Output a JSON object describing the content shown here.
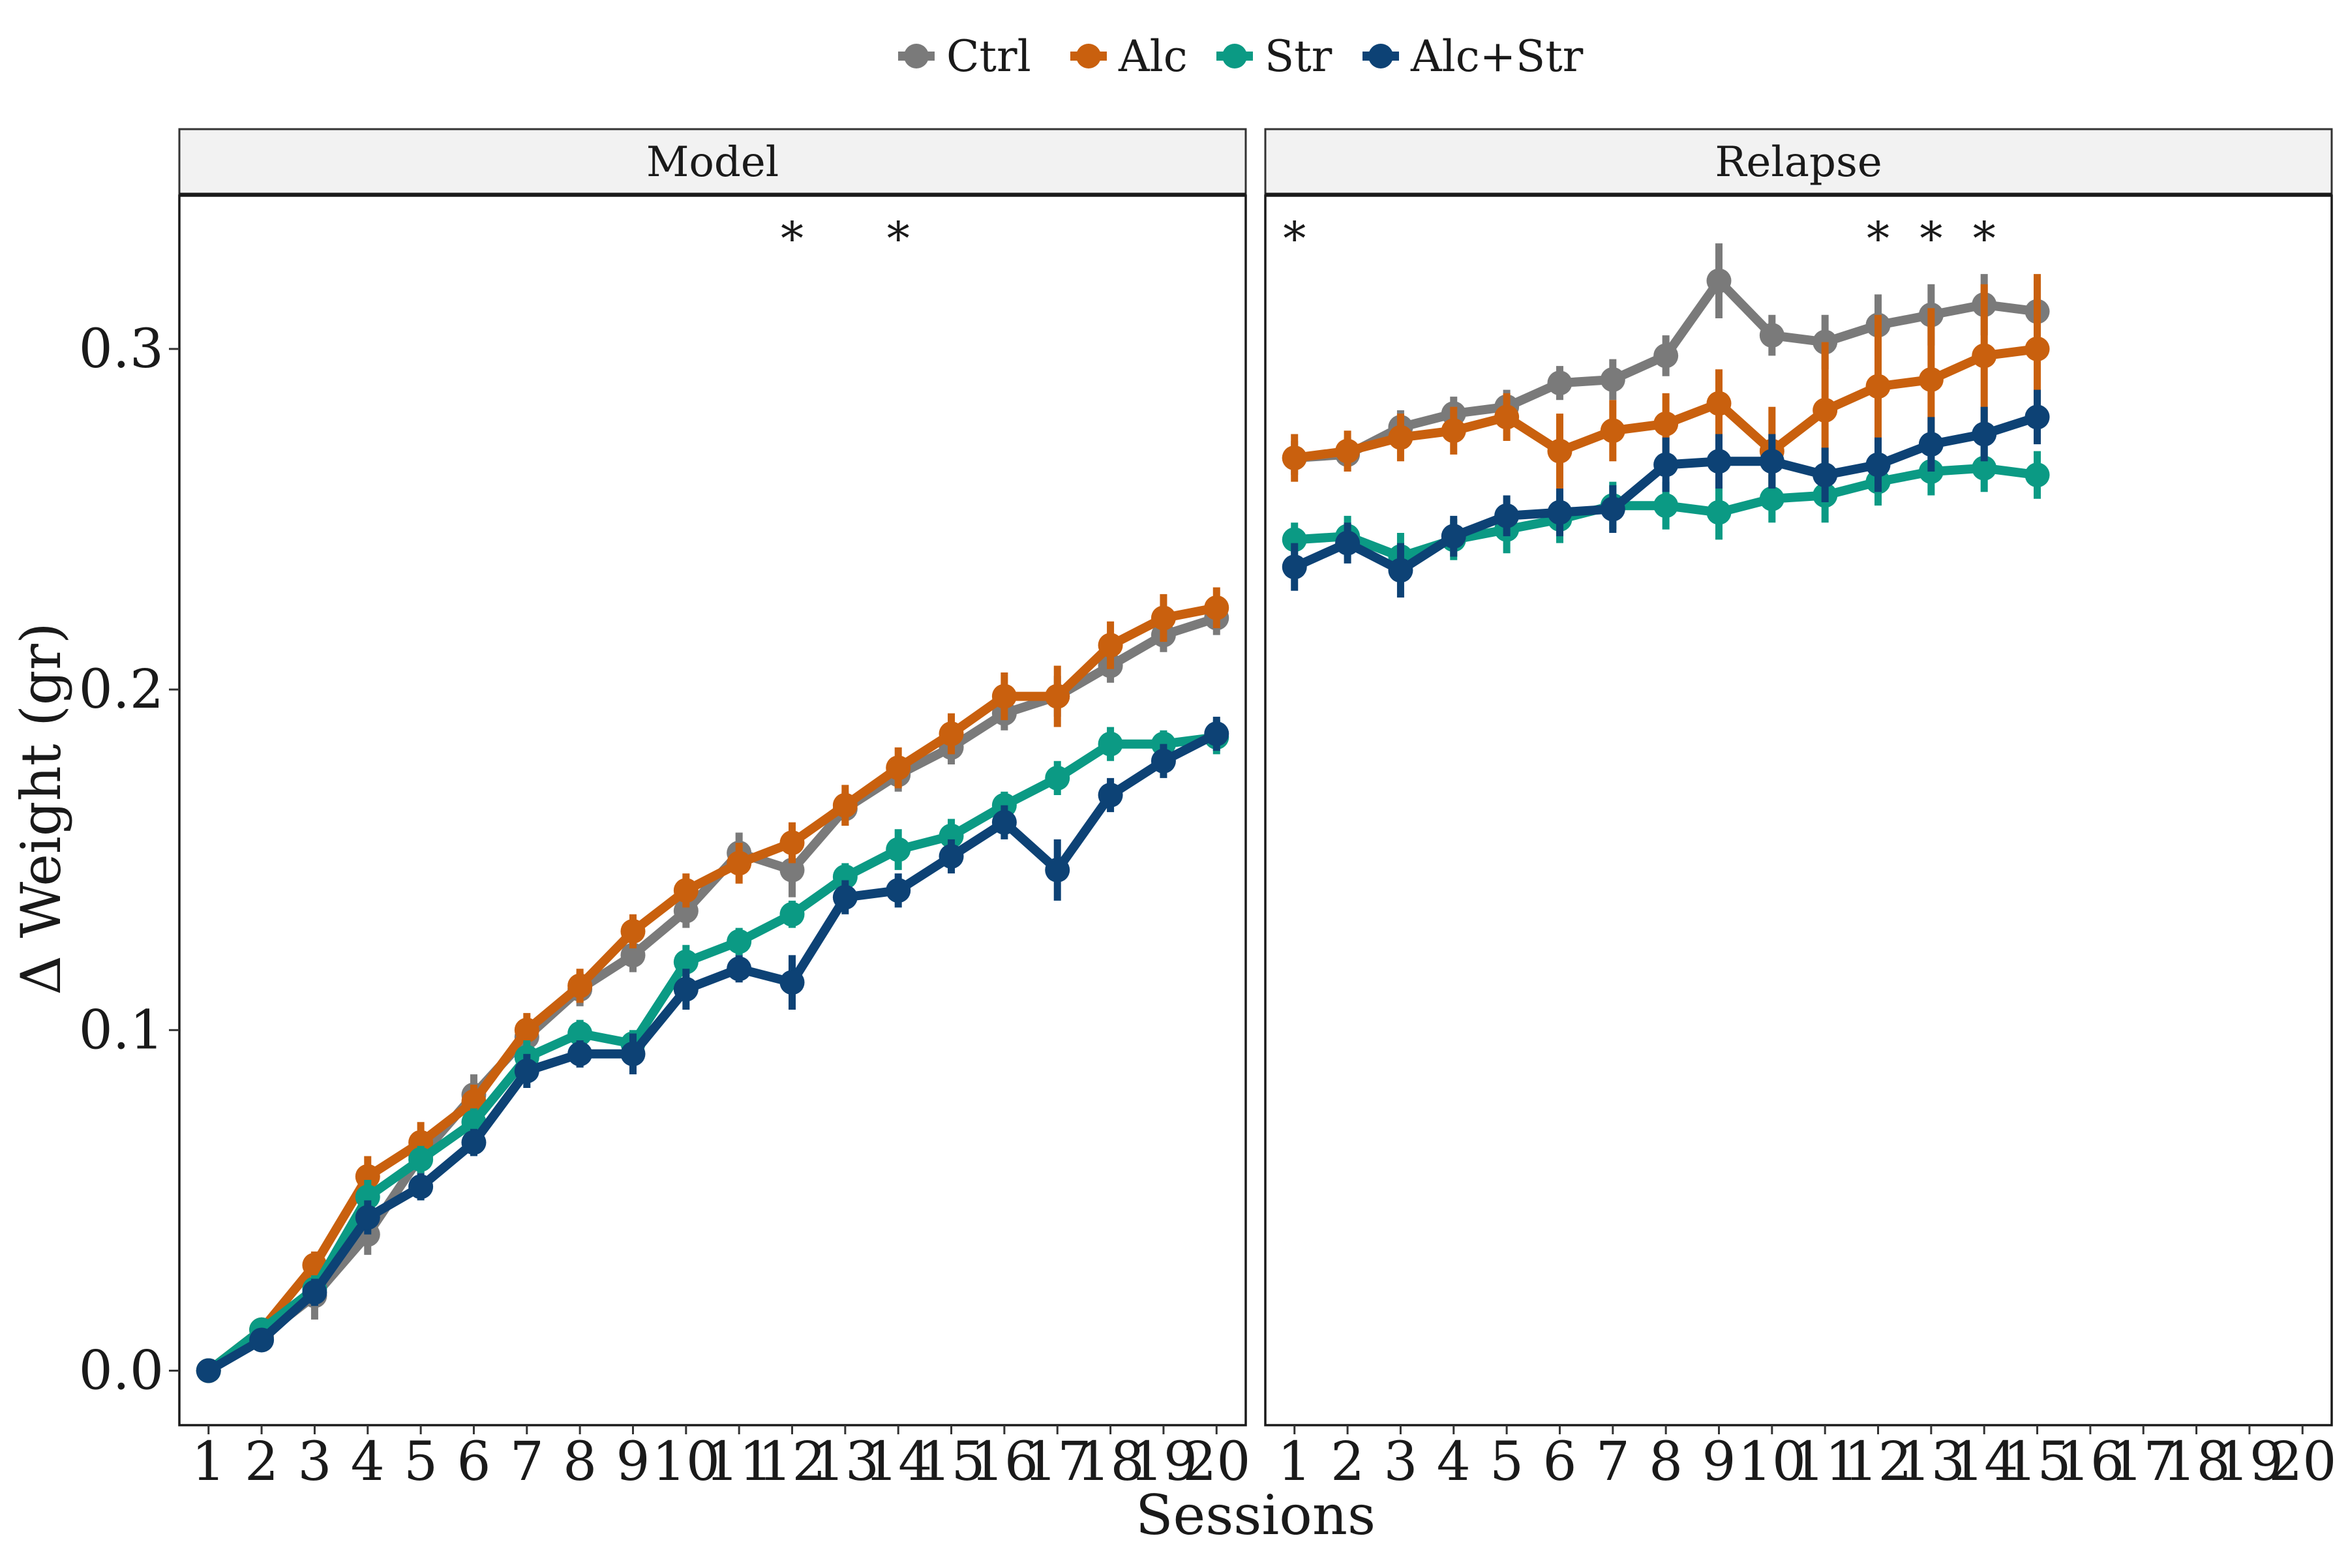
{
  "chart_data": {
    "type": "line",
    "legend": {
      "placement": "top",
      "entries": [
        "Ctrl",
        "Alc",
        "Str",
        "Alc+Str"
      ]
    },
    "xlabel": "Sessions",
    "ylabel": "Δ Weight (gr)",
    "ylim": [
      -0.016,
      0.345
    ],
    "yticks": [
      "0.0",
      "0.1",
      "0.2",
      "0.3"
    ],
    "ytick_values": [
      0.0,
      0.1,
      0.2,
      0.3
    ],
    "x_ticks": [
      "1",
      "2",
      "3",
      "4",
      "5",
      "6",
      "7",
      "8",
      "9",
      "10",
      "11",
      "12",
      "13",
      "14",
      "15",
      "16",
      "17",
      "18",
      "19",
      "20"
    ],
    "xlim": [
      0.45,
      20.55
    ],
    "grid": false,
    "colors": {
      "Ctrl": "#7a7a7a",
      "Alc": "#c9600e",
      "Str": "#0b9a84",
      "Alc+Str": "#0d4275"
    },
    "panels": [
      {
        "title": "Model",
        "significance": [
          {
            "session": 12,
            "label": "*"
          },
          {
            "session": 14,
            "label": "*"
          }
        ],
        "series": [
          {
            "name": "Ctrl",
            "x": [
              1,
              2,
              3,
              4,
              5,
              6,
              7,
              8,
              9,
              10,
              11,
              12,
              13,
              14,
              15,
              16,
              17,
              18,
              19,
              20
            ],
            "values": [
              0.0,
              0.01,
              0.022,
              0.04,
              0.063,
              0.081,
              0.098,
              0.112,
              0.122,
              0.135,
              0.152,
              0.147,
              0.165,
              0.175,
              0.183,
              0.193,
              0.198,
              0.207,
              0.216,
              0.221
            ],
            "err": [
              0.002,
              0.003,
              0.007,
              0.006,
              0.005,
              0.006,
              0.005,
              0.005,
              0.005,
              0.005,
              0.006,
              0.008,
              0.005,
              0.005,
              0.005,
              0.005,
              0.006,
              0.005,
              0.005,
              0.005
            ]
          },
          {
            "name": "Alc",
            "x": [
              1,
              2,
              3,
              4,
              5,
              6,
              7,
              8,
              9,
              10,
              11,
              12,
              13,
              14,
              15,
              16,
              17,
              18,
              19,
              20
            ],
            "values": [
              0.0,
              0.012,
              0.031,
              0.057,
              0.067,
              0.079,
              0.1,
              0.113,
              0.129,
              0.141,
              0.149,
              0.155,
              0.166,
              0.177,
              0.187,
              0.198,
              0.198,
              0.213,
              0.221,
              0.224
            ],
            "err": [
              0.002,
              0.003,
              0.004,
              0.006,
              0.006,
              0.005,
              0.005,
              0.005,
              0.005,
              0.005,
              0.006,
              0.006,
              0.006,
              0.006,
              0.006,
              0.007,
              0.009,
              0.007,
              0.007,
              0.006
            ]
          },
          {
            "name": "Str",
            "x": [
              1,
              2,
              3,
              4,
              5,
              6,
              7,
              8,
              9,
              10,
              11,
              12,
              13,
              14,
              15,
              16,
              17,
              18,
              19,
              20
            ],
            "values": [
              0.0,
              0.012,
              0.024,
              0.051,
              0.062,
              0.073,
              0.092,
              0.099,
              0.096,
              0.12,
              0.126,
              0.134,
              0.145,
              0.153,
              0.157,
              0.166,
              0.174,
              0.184,
              0.184,
              0.186
            ],
            "err": [
              0.002,
              0.003,
              0.004,
              0.005,
              0.004,
              0.004,
              0.005,
              0.004,
              0.004,
              0.005,
              0.004,
              0.004,
              0.004,
              0.006,
              0.005,
              0.004,
              0.005,
              0.005,
              0.004,
              0.005
            ]
          },
          {
            "name": "Alc+Str",
            "x": [
              1,
              2,
              3,
              4,
              5,
              6,
              7,
              8,
              9,
              10,
              11,
              12,
              13,
              14,
              15,
              16,
              17,
              18,
              19,
              20
            ],
            "values": [
              0.0,
              0.009,
              0.023,
              0.045,
              0.054,
              0.067,
              0.088,
              0.093,
              0.093,
              0.112,
              0.118,
              0.114,
              0.139,
              0.141,
              0.151,
              0.161,
              0.147,
              0.169,
              0.179,
              0.187
            ],
            "err": [
              0.002,
              0.003,
              0.004,
              0.005,
              0.004,
              0.004,
              0.005,
              0.004,
              0.006,
              0.006,
              0.004,
              0.008,
              0.005,
              0.005,
              0.005,
              0.005,
              0.009,
              0.005,
              0.005,
              0.005
            ]
          }
        ]
      },
      {
        "title": "Relapse",
        "significance": [
          {
            "session": 1,
            "label": "*"
          },
          {
            "session": 12,
            "label": "*"
          },
          {
            "session": 13,
            "label": "*"
          },
          {
            "session": 14,
            "label": "*"
          }
        ],
        "series": [
          {
            "name": "Ctrl",
            "x": [
              1,
              2,
              3,
              4,
              5,
              6,
              7,
              8,
              9,
              10,
              11,
              12,
              13,
              14,
              15
            ],
            "values": [
              0.268,
              0.269,
              0.277,
              0.281,
              0.283,
              0.29,
              0.291,
              0.298,
              0.32,
              0.304,
              0.302,
              0.307,
              0.31,
              0.313,
              0.311
            ],
            "err": [
              0.005,
              0.005,
              0.005,
              0.005,
              0.005,
              0.005,
              0.006,
              0.006,
              0.011,
              0.006,
              0.008,
              0.009,
              0.009,
              0.009,
              0.009
            ]
          },
          {
            "name": "Alc",
            "x": [
              1,
              2,
              3,
              4,
              5,
              6,
              7,
              8,
              9,
              10,
              11,
              12,
              13,
              14,
              15
            ],
            "values": [
              0.268,
              0.27,
              0.274,
              0.276,
              0.28,
              0.27,
              0.276,
              0.278,
              0.284,
              0.27,
              0.282,
              0.289,
              0.291,
              0.298,
              0.3
            ],
            "err": [
              0.007,
              0.006,
              0.007,
              0.007,
              0.007,
              0.011,
              0.009,
              0.009,
              0.01,
              0.013,
              0.02,
              0.021,
              0.021,
              0.021,
              0.022
            ]
          },
          {
            "name": "Str",
            "x": [
              1,
              2,
              3,
              4,
              5,
              6,
              7,
              8,
              9,
              10,
              11,
              12,
              13,
              14,
              15
            ],
            "values": [
              0.244,
              0.245,
              0.239,
              0.244,
              0.247,
              0.25,
              0.254,
              0.254,
              0.252,
              0.256,
              0.257,
              0.261,
              0.264,
              0.265,
              0.263
            ],
            "err": [
              0.005,
              0.006,
              0.007,
              0.006,
              0.007,
              0.007,
              0.007,
              0.007,
              0.008,
              0.007,
              0.008,
              0.007,
              0.007,
              0.007,
              0.007
            ]
          },
          {
            "name": "Alc+Str",
            "x": [
              1,
              2,
              3,
              4,
              5,
              6,
              7,
              8,
              9,
              10,
              11,
              12,
              13,
              14,
              15
            ],
            "values": [
              0.236,
              0.243,
              0.235,
              0.245,
              0.251,
              0.252,
              0.253,
              0.266,
              0.267,
              0.267,
              0.263,
              0.266,
              0.272,
              0.275,
              0.28
            ],
            "err": [
              0.007,
              0.006,
              0.008,
              0.006,
              0.006,
              0.007,
              0.007,
              0.008,
              0.008,
              0.008,
              0.008,
              0.008,
              0.008,
              0.008,
              0.008
            ]
          }
        ]
      }
    ]
  }
}
